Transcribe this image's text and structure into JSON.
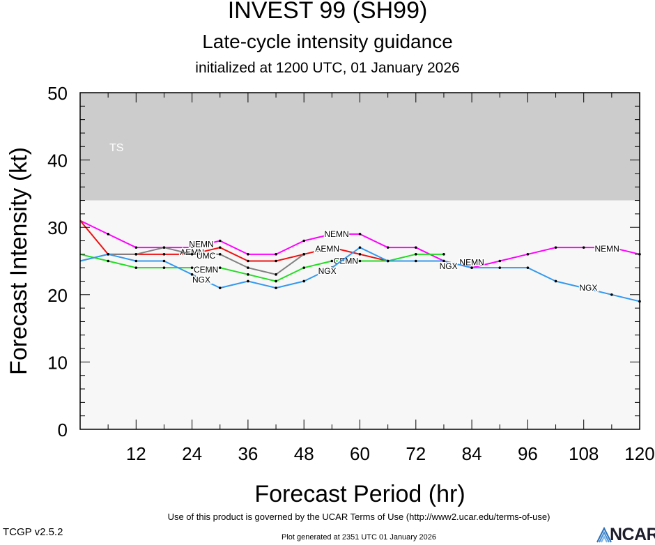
{
  "header": {
    "title": "INVEST 99 (SH99)",
    "subtitle": "Late-cycle intensity guidance",
    "initialized": "initialized at 1200 UTC, 01 January 2026"
  },
  "footer": {
    "terms": "Use of this product is governed by the UCAR Terms of Use (http://www2.ucar.edu/terms-of-use)",
    "version": "TCGP v2.5.2",
    "generated": "Plot generated at 2351 UTC   01 January 2026",
    "logo": "NCAR"
  },
  "chart_data": {
    "type": "line",
    "xlabel": "Forecast Period (hr)",
    "ylabel": "Forecast Intensity (kt)",
    "xlim": [
      0,
      120
    ],
    "ylim": [
      0,
      50
    ],
    "xticks": [
      12,
      24,
      36,
      48,
      60,
      72,
      84,
      96,
      108,
      120
    ],
    "yticks": [
      0,
      10,
      20,
      30,
      40,
      50
    ],
    "bands": [
      {
        "label": "TS",
        "from": 34,
        "to": 50,
        "color": "#cccccc"
      },
      {
        "label": "",
        "from": 0,
        "to": 34,
        "color": "#f7f7f7"
      }
    ],
    "series": [
      {
        "name": "NEMN",
        "color": "#ff00ff",
        "x": [
          0,
          6,
          12,
          18,
          24,
          30,
          36,
          42,
          48,
          54,
          60,
          66,
          72,
          78,
          84,
          90,
          96,
          102,
          108,
          114,
          120
        ],
        "y": [
          31,
          29,
          27,
          27,
          27,
          28,
          26,
          26,
          28,
          29,
          29,
          27,
          27,
          25,
          24,
          25,
          26,
          27,
          27,
          27,
          26
        ],
        "labels": [
          {
            "x": 26,
            "y": 27.5
          },
          {
            "x": 55,
            "y": 29
          },
          {
            "x": 84,
            "y": 24.8
          },
          {
            "x": 113,
            "y": 26.8
          }
        ]
      },
      {
        "name": "AEMN",
        "color": "#ee1111",
        "x": [
          0,
          6,
          12,
          18,
          24,
          30,
          36,
          42,
          48,
          54,
          60,
          66
        ],
        "y": [
          31,
          26,
          26,
          26,
          26,
          27,
          25,
          25,
          26,
          27,
          26,
          25
        ],
        "labels": [
          {
            "x": 24,
            "y": 26.3
          },
          {
            "x": 53,
            "y": 26.8
          }
        ]
      },
      {
        "name": "UMC",
        "color": "#808080",
        "x": [
          0,
          6,
          12,
          18,
          24,
          30,
          36,
          42,
          48
        ],
        "y": [
          25,
          26,
          26,
          27,
          26,
          26,
          24,
          23,
          26
        ],
        "labels": [
          {
            "x": 27,
            "y": 25.8
          }
        ]
      },
      {
        "name": "CEMN",
        "color": "#22dd22",
        "x": [
          0,
          6,
          12,
          18,
          24,
          30,
          36,
          42,
          48,
          54,
          60,
          66,
          72,
          78
        ],
        "y": [
          26,
          25,
          24,
          24,
          24,
          24,
          23,
          22,
          24,
          25,
          25,
          25,
          26,
          26
        ],
        "labels": [
          {
            "x": 27,
            "y": 23.7
          },
          {
            "x": 57,
            "y": 25
          }
        ]
      },
      {
        "name": "NGX",
        "color": "#3399ee",
        "x": [
          0,
          6,
          12,
          18,
          24,
          30,
          36,
          42,
          48,
          54,
          60,
          66,
          72,
          78,
          84,
          90,
          96,
          102,
          108,
          114,
          120
        ],
        "y": [
          25,
          26,
          25,
          25,
          23,
          21,
          22,
          21,
          22,
          24,
          27,
          25,
          25,
          25,
          24,
          24,
          24,
          22,
          21,
          20,
          19
        ],
        "labels": [
          {
            "x": 26,
            "y": 22.2
          },
          {
            "x": 53,
            "y": 23.5
          },
          {
            "x": 79,
            "y": 24.2
          },
          {
            "x": 109,
            "y": 21
          }
        ]
      }
    ]
  }
}
